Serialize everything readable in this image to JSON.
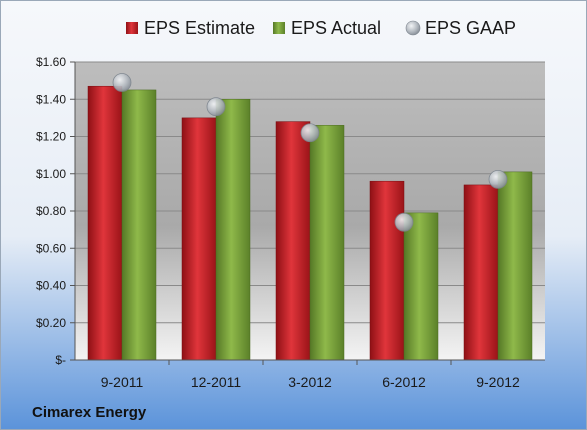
{
  "company": "Cimarex Energy",
  "colors": {
    "estimate": "#c8232a",
    "actual": "#78a138",
    "gaap": "#a9b0b8",
    "bg_top": "#f4f7fb",
    "bg_bottom": "#5f97dc"
  },
  "chart_data": {
    "type": "bar",
    "categories": [
      "9-2011",
      "12-2011",
      "3-2012",
      "6-2012",
      "9-2012"
    ],
    "series": [
      {
        "name": "EPS Estimate",
        "kind": "bar",
        "values": [
          1.47,
          1.3,
          1.28,
          0.96,
          0.94
        ]
      },
      {
        "name": "EPS Actual",
        "kind": "bar",
        "values": [
          1.45,
          1.4,
          1.26,
          0.79,
          1.01
        ]
      },
      {
        "name": "EPS GAAP",
        "kind": "marker",
        "values": [
          1.49,
          1.36,
          1.22,
          0.74,
          0.97
        ]
      }
    ],
    "ylim": [
      0,
      1.6
    ],
    "yticks": [
      0,
      0.2,
      0.4,
      0.6,
      0.8,
      1.0,
      1.2,
      1.4,
      1.6
    ],
    "ytick_labels": [
      "$-",
      "$0.20",
      "$0.40",
      "$0.60",
      "$0.80",
      "$1.00",
      "$1.20",
      "$1.40",
      "$1.60"
    ],
    "grid": true,
    "legend_position": "top"
  }
}
